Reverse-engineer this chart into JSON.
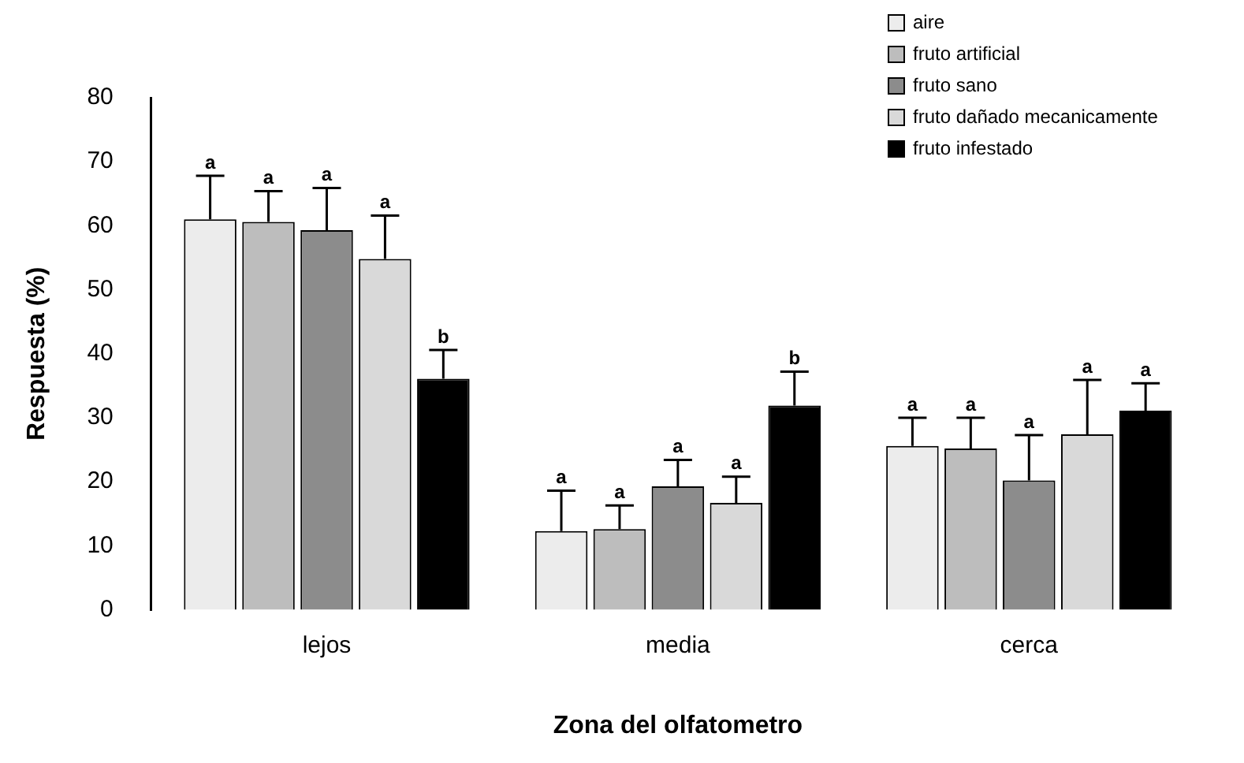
{
  "chart_data": {
    "type": "bar",
    "xlabel": "Zona del olfatometro",
    "ylabel": "Respuesta (%)",
    "categories": [
      "lejos",
      "media",
      "cerca"
    ],
    "series": [
      {
        "name": "aire",
        "color": "#ececec",
        "values": [
          61.0,
          12.3,
          25.6
        ],
        "errors": [
          6.8,
          6.3,
          4.4
        ],
        "value_labels": [
          "a",
          "a",
          "a"
        ]
      },
      {
        "name": "fruto artificial",
        "color": "#bdbdbd",
        "values": [
          60.6,
          12.6,
          25.2
        ],
        "errors": [
          4.8,
          3.7,
          4.8
        ],
        "value_labels": [
          "a",
          "a",
          "a"
        ]
      },
      {
        "name": "fruto sano",
        "color": "#8c8c8c",
        "values": [
          59.3,
          19.3,
          20.2
        ],
        "errors": [
          6.6,
          4.1,
          7.1
        ],
        "value_labels": [
          "a",
          "a",
          "a"
        ]
      },
      {
        "name": "fruto dañado mecanicamente",
        "color": "#d9d9d9",
        "values": [
          54.8,
          16.7,
          27.4
        ],
        "errors": [
          6.8,
          4.1,
          8.5
        ],
        "value_labels": [
          "a",
          "a",
          "a"
        ]
      },
      {
        "name": "fruto infestado",
        "color": "#000000",
        "values": [
          36.1,
          31.9,
          31.1
        ],
        "errors": [
          4.5,
          5.3,
          4.3
        ],
        "value_labels": [
          "b",
          "b",
          "a"
        ]
      }
    ],
    "ylim": [
      0,
      80
    ],
    "yticks": [
      0,
      10,
      20,
      30,
      40,
      50,
      60,
      70,
      80
    ],
    "grid": false,
    "legend": "top right"
  }
}
